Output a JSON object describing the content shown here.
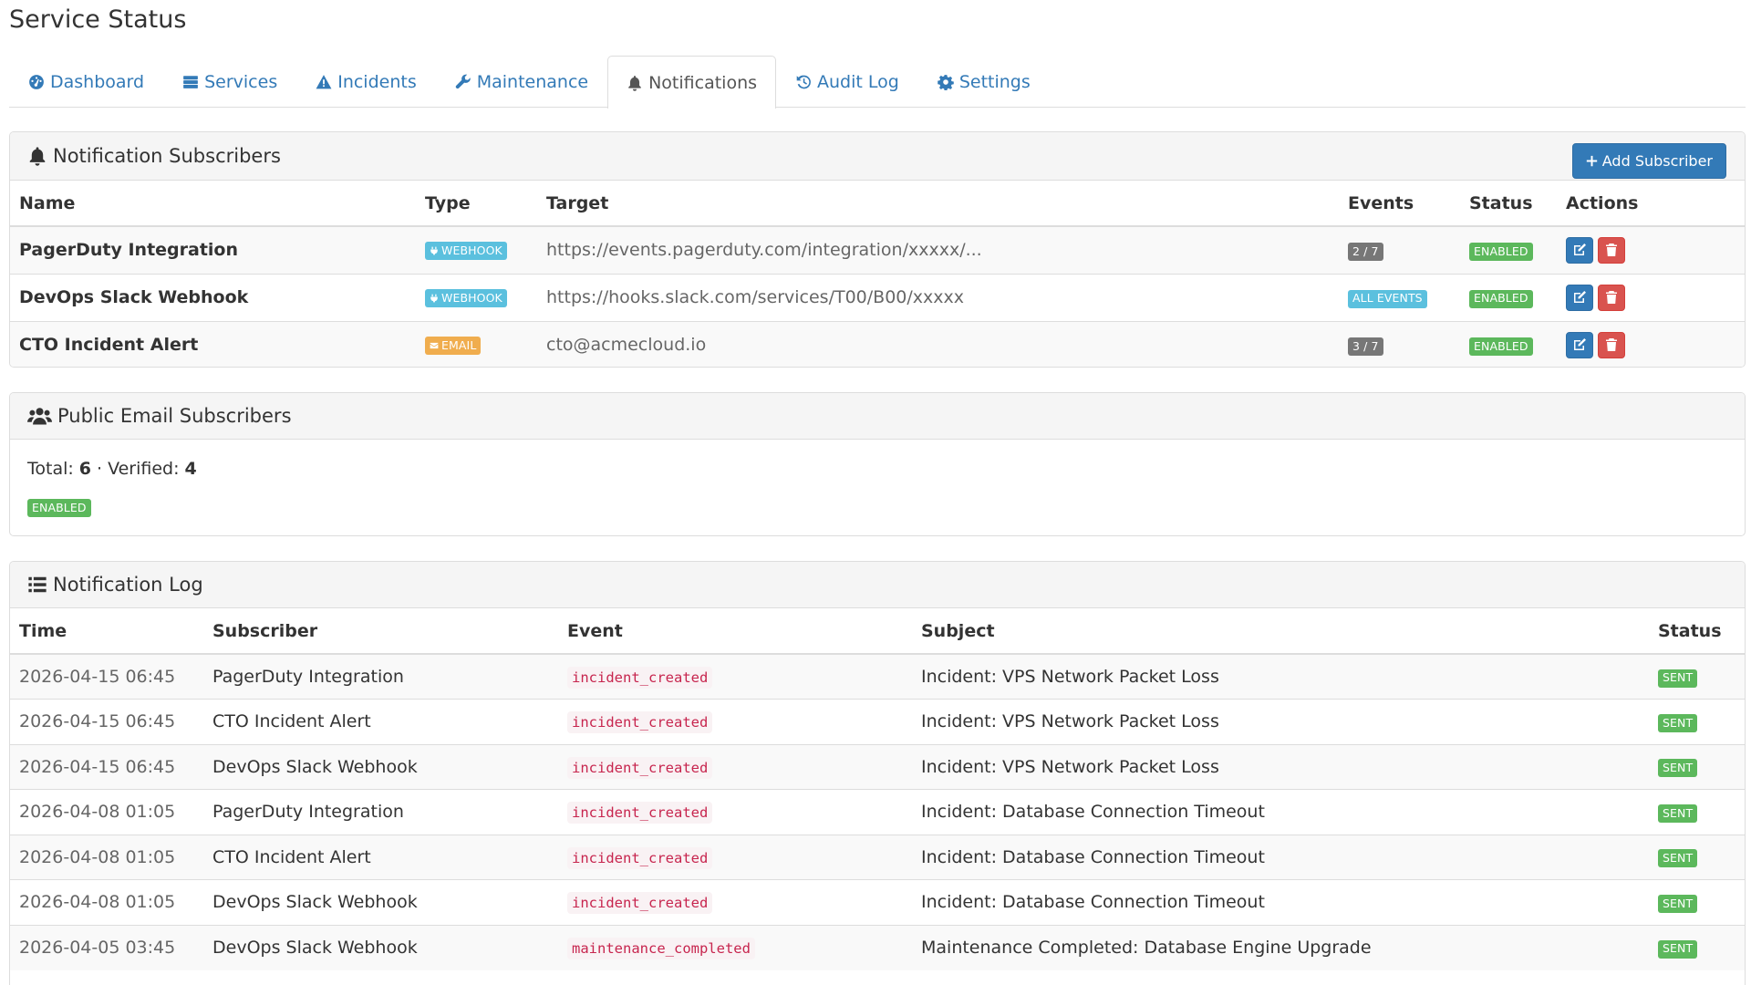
{
  "page_title": "Service Status",
  "tabs": [
    {
      "label": "Dashboard",
      "icon": "dashboard-icon"
    },
    {
      "label": "Services",
      "icon": "server-icon"
    },
    {
      "label": "Incidents",
      "icon": "warning-icon"
    },
    {
      "label": "Maintenance",
      "icon": "wrench-icon"
    },
    {
      "label": "Notifications",
      "icon": "bell-icon",
      "active": true
    },
    {
      "label": "Audit Log",
      "icon": "history-icon"
    },
    {
      "label": "Settings",
      "icon": "gear-icon"
    }
  ],
  "subscribers": {
    "title": "Notification Subscribers",
    "add_button": "Add Subscriber",
    "columns": [
      "Name",
      "Type",
      "Target",
      "Events",
      "Status",
      "Actions"
    ],
    "rows": [
      {
        "name": "PagerDuty Integration",
        "type": "WEBHOOK",
        "type_icon": "plug-icon",
        "target": "https://events.pagerduty.com/integration/xxxxx/...",
        "events": "2 / 7",
        "status": "ENABLED"
      },
      {
        "name": "DevOps Slack Webhook",
        "type": "WEBHOOK",
        "type_icon": "plug-icon",
        "target": "https://hooks.slack.com/services/T00/B00/xxxxx",
        "events": "ALL EVENTS",
        "status": "ENABLED"
      },
      {
        "name": "CTO Incident Alert",
        "type": "EMAIL",
        "type_icon": "envelope-icon",
        "target": "cto@acmecloud.io",
        "events": "3 / 7",
        "status": "ENABLED"
      }
    ]
  },
  "public": {
    "title": "Public Email Subscribers",
    "total_label": "Total:",
    "total": "6",
    "separator": "·",
    "verified_label": "Verified:",
    "verified": "4",
    "status": "ENABLED"
  },
  "log": {
    "title": "Notification Log",
    "columns": [
      "Time",
      "Subscriber",
      "Event",
      "Subject",
      "Status"
    ],
    "rows": [
      {
        "time": "2026-04-15 06:45",
        "subscriber": "PagerDuty Integration",
        "event": "incident_created",
        "subject": "Incident: VPS Network Packet Loss",
        "status": "SENT"
      },
      {
        "time": "2026-04-15 06:45",
        "subscriber": "CTO Incident Alert",
        "event": "incident_created",
        "subject": "Incident: VPS Network Packet Loss",
        "status": "SENT"
      },
      {
        "time": "2026-04-15 06:45",
        "subscriber": "DevOps Slack Webhook",
        "event": "incident_created",
        "subject": "Incident: VPS Network Packet Loss",
        "status": "SENT"
      },
      {
        "time": "2026-04-08 01:05",
        "subscriber": "PagerDuty Integration",
        "event": "incident_created",
        "subject": "Incident: Database Connection Timeout",
        "status": "SENT"
      },
      {
        "time": "2026-04-08 01:05",
        "subscriber": "CTO Incident Alert",
        "event": "incident_created",
        "subject": "Incident: Database Connection Timeout",
        "status": "SENT"
      },
      {
        "time": "2026-04-08 01:05",
        "subscriber": "DevOps Slack Webhook",
        "event": "incident_created",
        "subject": "Incident: Database Connection Timeout",
        "status": "SENT"
      },
      {
        "time": "2026-04-05 03:45",
        "subscriber": "DevOps Slack Webhook",
        "event": "maintenance_completed",
        "subject": "Maintenance Completed: Database Engine Upgrade",
        "status": "SENT"
      }
    ]
  }
}
